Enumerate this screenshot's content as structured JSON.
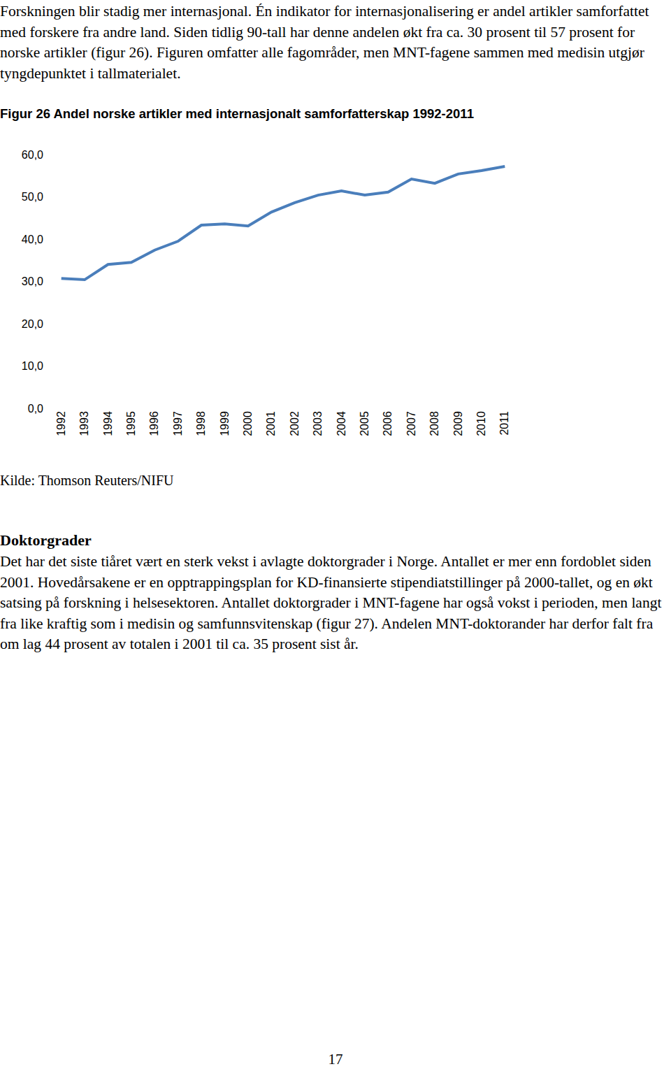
{
  "intro": "Forskningen blir stadig mer internasjonal. Én indikator for internasjonalisering er andel artikler samforfattet med forskere fra andre land. Siden tidlig 90-tall har denne andelen økt fra ca. 30 prosent til 57 prosent for norske artikler (figur 26). Figuren omfatter alle fagområder, men MNT-fagene sammen med medisin utgjør tyngdepunktet i tallmaterialet.",
  "chart_data": {
    "type": "line",
    "title": "Figur 26 Andel norske artikler med internasjonalt samforfatterskap 1992-2011",
    "categories": [
      "1992",
      "1993",
      "1994",
      "1995",
      "1996",
      "1997",
      "1998",
      "1999",
      "2000",
      "2001",
      "2002",
      "2003",
      "2004",
      "2005",
      "2006",
      "2007",
      "2008",
      "2009",
      "2010",
      "2011"
    ],
    "values": [
      30.7,
      30.4,
      34.0,
      34.5,
      37.4,
      39.5,
      43.3,
      43.6,
      43.1,
      46.4,
      48.6,
      50.4,
      51.4,
      50.4,
      51.1,
      54.2,
      53.2,
      55.4,
      56.2,
      57.2
    ],
    "color": "#4a7ebb",
    "ylim": [
      0,
      60
    ],
    "yticks": [
      {
        "value": 0,
        "label": "0,0"
      },
      {
        "value": 10,
        "label": "10,0"
      },
      {
        "value": 20,
        "label": "20,0"
      },
      {
        "value": 30,
        "label": "30,0"
      },
      {
        "value": 40,
        "label": "40,0"
      },
      {
        "value": 50,
        "label": "50,0"
      },
      {
        "value": 60,
        "label": "60,0"
      }
    ],
    "grid": false
  },
  "source": "Kilde: Thomson Reuters/NIFU",
  "heading": "Doktorgrader",
  "body": "Det har det siste tiåret vært en sterk vekst i avlagte doktorgrader i Norge. Antallet er mer enn fordoblet siden 2001. Hovedårsakene er en opptrappingsplan for KD-finansierte stipendiatstillinger på 2000-tallet, og en økt satsing på forskning i helsesektoren. Antallet doktorgrader i MNT-fagene har også vokst i perioden, men langt fra like kraftig som i medisin og samfunnsvitenskap (figur 27). Andelen MNT-doktorander har derfor falt fra om lag 44 prosent av totalen i 2001 til ca. 35 prosent sist år.",
  "page_number": "17"
}
